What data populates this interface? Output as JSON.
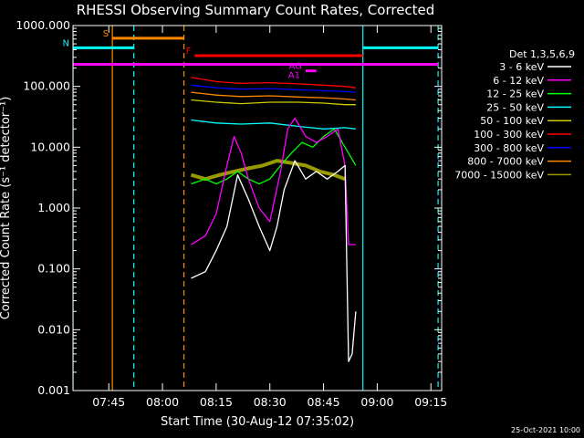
{
  "chart_data": {
    "type": "line",
    "title": "RHESSI Observing Summary Count Rates, Corrected",
    "xlabel": "Start Time (30-Aug-12 07:35:02)",
    "ylabel": "Corrected Count Rate (s⁻¹ detector⁻¹)",
    "xlim": [
      "07:35",
      "09:18"
    ],
    "ylim": [
      0.001,
      1000
    ],
    "yscale": "log",
    "x_ticks": [
      "07:45",
      "08:00",
      "08:15",
      "08:30",
      "08:45",
      "09:00",
      "09:15"
    ],
    "y_ticks": [
      "1000.000",
      "100.000",
      "10.000",
      "1.000",
      "0.100",
      "0.010",
      "0.001"
    ],
    "legend_title": "Det 1,3,5,6,9",
    "legend_position": "right",
    "date_stamp": "25-Oct-2021 10:00",
    "series": [
      {
        "name": "3 - 6 keV",
        "color": "#ffffff",
        "x": [
          "08:08",
          "08:12",
          "08:15",
          "08:18",
          "08:21",
          "08:24",
          "08:27",
          "08:30",
          "08:32",
          "08:34",
          "08:37",
          "08:40",
          "08:43",
          "08:46",
          "08:49",
          "08:51",
          "08:52",
          "08:53",
          "08:54"
        ],
        "y": [
          0.07,
          0.09,
          0.2,
          0.5,
          3.5,
          1.4,
          0.5,
          0.2,
          0.5,
          2.0,
          6.0,
          3.0,
          4.0,
          3.0,
          4.0,
          5.0,
          0.003,
          0.004,
          0.02
        ]
      },
      {
        "name": "6 - 12 keV",
        "color": "#ff00ff",
        "x": [
          "08:08",
          "08:12",
          "08:15",
          "08:18",
          "08:20",
          "08:22",
          "08:24",
          "08:27",
          "08:30",
          "08:33",
          "08:35",
          "08:37",
          "08:40",
          "08:43",
          "08:46",
          "08:49",
          "08:51",
          "08:52",
          "08:54"
        ],
        "y": [
          0.25,
          0.35,
          0.8,
          5.0,
          15.0,
          8.0,
          3.0,
          1.0,
          0.6,
          4.0,
          20.0,
          30.0,
          15.0,
          12.0,
          15.0,
          20.0,
          5.0,
          0.25,
          0.25
        ]
      },
      {
        "name": "12 - 25 keV",
        "color": "#00ff00",
        "x": [
          "08:08",
          "08:12",
          "08:15",
          "08:18",
          "08:21",
          "08:24",
          "08:27",
          "08:30",
          "08:33",
          "08:36",
          "08:39",
          "08:42",
          "08:45",
          "08:48",
          "08:51",
          "08:54"
        ],
        "y": [
          2.5,
          3.0,
          2.5,
          3.0,
          4.0,
          3.0,
          2.5,
          3.0,
          5.0,
          8.0,
          12.0,
          10.0,
          15.0,
          20.0,
          10.0,
          5.0
        ]
      },
      {
        "name": "25 - 50 keV",
        "color": "#00ffff",
        "x": [
          "08:08",
          "08:15",
          "08:22",
          "08:30",
          "08:38",
          "08:45",
          "08:51",
          "08:54"
        ],
        "y": [
          28.0,
          25.0,
          24.0,
          25.0,
          22.0,
          20.0,
          21.0,
          20.0
        ]
      },
      {
        "name": "50 - 100 keV",
        "color": "#cccc00",
        "x": [
          "08:08",
          "08:15",
          "08:22",
          "08:30",
          "08:38",
          "08:45",
          "08:51",
          "08:54"
        ],
        "y": [
          60.0,
          55.0,
          52.0,
          55.0,
          55.0,
          53.0,
          50.0,
          50.0
        ]
      },
      {
        "name": "100 - 300 keV",
        "color": "#ff0000",
        "x": [
          "08:08",
          "08:15",
          "08:22",
          "08:30",
          "08:38",
          "08:45",
          "08:51",
          "08:54"
        ],
        "y": [
          140.0,
          120.0,
          112.0,
          115.0,
          110.0,
          105.0,
          100.0,
          95.0
        ]
      },
      {
        "name": "300 - 800 keV",
        "color": "#0000ff",
        "x": [
          "08:08",
          "08:15",
          "08:22",
          "08:30",
          "08:38",
          "08:45",
          "08:51",
          "08:54"
        ],
        "y": [
          105.0,
          95.0,
          90.0,
          92.0,
          88.0,
          85.0,
          82.0,
          80.0
        ]
      },
      {
        "name": "800 - 7000 keV",
        "color": "#ff8800",
        "x": [
          "08:08",
          "08:15",
          "08:22",
          "08:30",
          "08:38",
          "08:45",
          "08:51",
          "08:54"
        ],
        "y": [
          80.0,
          72.0,
          68.0,
          70.0,
          67.0,
          65.0,
          62.0,
          60.0
        ]
      },
      {
        "name": "7000 - 15000 keV",
        "color": "#999900",
        "x": [
          "08:08",
          "08:12",
          "08:16",
          "08:20",
          "08:24",
          "08:28",
          "08:32",
          "08:36",
          "08:40",
          "08:44",
          "08:48",
          "08:51"
        ],
        "y": [
          3.5,
          3.0,
          3.5,
          4.0,
          4.5,
          5.0,
          6.0,
          5.5,
          5.0,
          4.0,
          3.5,
          3.0
        ]
      }
    ],
    "intervals": [
      {
        "label": "S",
        "color": "#ff8800",
        "start": "07:46",
        "end": "08:06",
        "level": 620
      },
      {
        "label": "N",
        "color": "#00ffff",
        "start": "07:35",
        "end": "07:52",
        "level": 430
      },
      {
        "label": "",
        "color": "#00ffff",
        "start": "08:56",
        "end": "09:17",
        "level": 430
      },
      {
        "label": "F",
        "color": "#ff0000",
        "start": "08:09",
        "end": "08:56",
        "level": 320
      },
      {
        "label": "",
        "color": "#ff00ff",
        "start": "07:35",
        "end": "09:17",
        "level": 230
      },
      {
        "label": "AG",
        "color": "#ff00ff",
        "start": "08:40",
        "end": "08:43",
        "level": 180
      },
      {
        "label": "A1",
        "color": "#ff00ff",
        "start": "",
        "end": "",
        "level": 180
      }
    ],
    "vertical_markers": [
      {
        "time": "07:35",
        "color": "#00ffff",
        "style": "solid"
      },
      {
        "time": "07:46",
        "color": "#ff8800",
        "style": "solid"
      },
      {
        "time": "07:52",
        "color": "#00ffff",
        "style": "dashed"
      },
      {
        "time": "08:06",
        "color": "#ff8800",
        "style": "dashed"
      },
      {
        "time": "08:56",
        "color": "#00ffff",
        "style": "solid"
      },
      {
        "time": "09:17",
        "color": "#00ffff",
        "style": "dashed"
      }
    ]
  }
}
